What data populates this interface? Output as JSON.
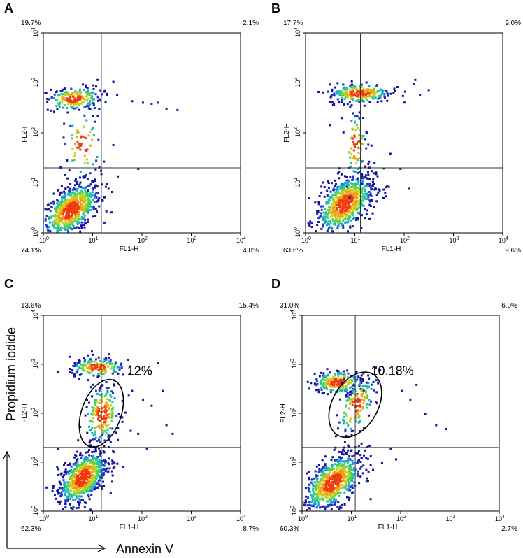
{
  "figure": {
    "axis_label_y": "Propidium iodide",
    "axis_label_x": "Annexin V"
  },
  "chart_data": [
    {
      "type": "scatter",
      "panel": "A",
      "xlabel": "FL1-H",
      "ylabel": "FL2-H",
      "xlim": [
        1,
        10000
      ],
      "ylim": [
        1,
        10000
      ],
      "scale": "log",
      "quadrant_divider": {
        "x": 15,
        "y": 20
      },
      "quadrants": {
        "upper_left": "19.7%",
        "upper_right": "2.1%",
        "lower_left": "74.1%",
        "lower_right": "4.0%"
      },
      "populations": [
        {
          "cx": 3.5,
          "cy": 3,
          "sx": 0.3,
          "sy": 0.28,
          "rho": 0.55,
          "n": 700
        },
        {
          "cx": 4,
          "cy": 500,
          "sx": 0.28,
          "sy": 0.12,
          "rho": 0.2,
          "n": 200
        },
        {
          "cx": 6,
          "cy": 60,
          "sx": 0.2,
          "sy": 0.35,
          "rho": 0,
          "n": 70
        }
      ],
      "outliers": [
        [
          25,
          60
        ],
        [
          30,
          600
        ],
        [
          60,
          450
        ],
        [
          100,
          420
        ],
        [
          150,
          400
        ],
        [
          200,
          420
        ],
        [
          300,
          320
        ],
        [
          500,
          300
        ],
        [
          12,
          1200
        ],
        [
          25,
          1100
        ],
        [
          80,
          20
        ],
        [
          20,
          8
        ]
      ],
      "gate": null
    },
    {
      "type": "scatter",
      "panel": "B",
      "xlabel": "FL1-H",
      "ylabel": "FL2-H",
      "xlim": [
        1,
        10000
      ],
      "ylim": [
        1,
        10000
      ],
      "scale": "log",
      "quadrant_divider": {
        "x": 13,
        "y": 20
      },
      "quadrants": {
        "upper_left": "17.7%",
        "upper_right": "9.0%",
        "lower_left": "63.6%",
        "lower_right": "9.6%"
      },
      "populations": [
        {
          "cx": 6,
          "cy": 4,
          "sx": 0.3,
          "sy": 0.3,
          "rho": 0.5,
          "n": 700
        },
        {
          "cx": 12,
          "cy": 650,
          "sx": 0.32,
          "sy": 0.1,
          "rho": 0.1,
          "n": 250
        },
        {
          "cx": 10,
          "cy": 60,
          "sx": 0.12,
          "sy": 0.35,
          "rho": 0,
          "n": 80
        }
      ],
      "outliers": [
        [
          60,
          800
        ],
        [
          100,
          700
        ],
        [
          150,
          1000
        ],
        [
          200,
          600
        ],
        [
          300,
          750
        ],
        [
          80,
          20
        ],
        [
          120,
          8
        ],
        [
          50,
          40
        ],
        [
          3,
          150
        ],
        [
          160,
          1200
        ]
      ],
      "gate": null
    },
    {
      "type": "scatter",
      "panel": "C",
      "xlabel": "FL1-H",
      "ylabel": "FL2-H",
      "xlim": [
        1,
        10000
      ],
      "ylim": [
        1,
        10000
      ],
      "scale": "log",
      "quadrant_divider": {
        "x": 15,
        "y": 20
      },
      "quadrants": {
        "upper_left": "13.6%",
        "upper_right": "15.4%",
        "lower_left": "62.3%",
        "lower_right": "8.7%"
      },
      "populations": [
        {
          "cx": 6,
          "cy": 5,
          "sx": 0.25,
          "sy": 0.28,
          "rho": 0.5,
          "n": 700
        },
        {
          "cx": 12,
          "cy": 900,
          "sx": 0.28,
          "sy": 0.1,
          "rho": 0,
          "n": 170
        },
        {
          "cx": 15,
          "cy": 100,
          "sx": 0.18,
          "sy": 0.32,
          "rho": 0.2,
          "n": 200
        }
      ],
      "outliers": [
        [
          60,
          300
        ],
        [
          100,
          200
        ],
        [
          150,
          150
        ],
        [
          200,
          1100
        ],
        [
          250,
          300
        ],
        [
          300,
          60
        ],
        [
          400,
          40
        ],
        [
          80,
          40
        ],
        [
          120,
          20
        ],
        [
          5,
          1200
        ],
        [
          50,
          1300
        ]
      ],
      "gate": {
        "cx": 15,
        "cy": 100,
        "rx_dec": 0.4,
        "ry_dec": 0.72,
        "angle": 20,
        "label": "12%",
        "label_x": 50,
        "label_y": 600
      }
    },
    {
      "type": "scatter",
      "panel": "D",
      "xlabel": "FL1-H",
      "ylabel": "FL2-H",
      "xlim": [
        1,
        10000
      ],
      "ylim": [
        1,
        10000
      ],
      "scale": "log",
      "quadrant_divider": {
        "x": 12,
        "y": 20
      },
      "quadrants": {
        "upper_left": "31.0%",
        "upper_right": "6.0%",
        "lower_left": "60.3%",
        "lower_right": "2.7%"
      },
      "populations": [
        {
          "cx": 4,
          "cy": 4,
          "sx": 0.3,
          "sy": 0.3,
          "rho": 0.55,
          "n": 700
        },
        {
          "cx": 5,
          "cy": 450,
          "sx": 0.25,
          "sy": 0.12,
          "rho": 0.1,
          "n": 230
        },
        {
          "cx": 12,
          "cy": 150,
          "sx": 0.2,
          "sy": 0.3,
          "rho": 0.55,
          "n": 150
        }
      ],
      "outliers": [
        [
          100,
          300
        ],
        [
          150,
          200
        ],
        [
          200,
          400
        ],
        [
          300,
          100
        ],
        [
          500,
          60
        ],
        [
          800,
          50
        ],
        [
          60,
          20
        ],
        [
          40,
          10
        ],
        [
          30,
          900
        ],
        [
          80,
          700
        ]
      ],
      "gate": {
        "cx": 12,
        "cy": 150,
        "rx_dec": 0.46,
        "ry_dec": 0.72,
        "angle": 30,
        "label": "10.18%",
        "label_x": 25,
        "label_y": 600
      }
    }
  ]
}
